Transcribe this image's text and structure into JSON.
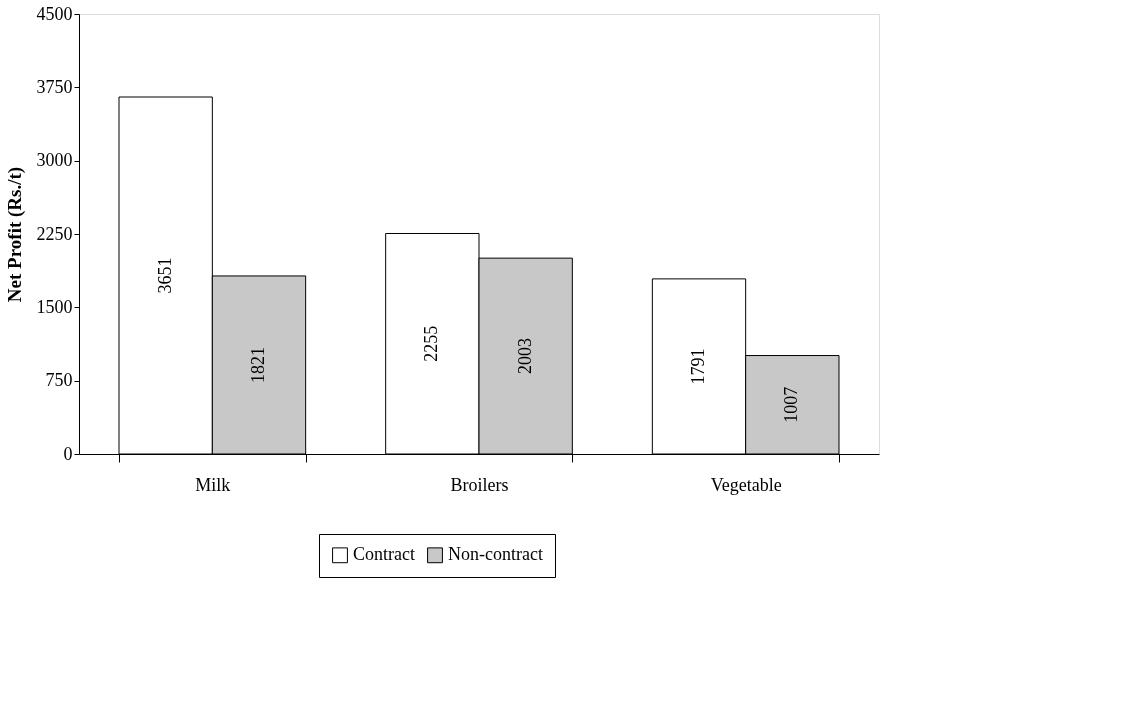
{
  "chart_data": {
    "type": "bar",
    "ylabel": "Net Profit (Rs./t)",
    "categories": [
      "Milk",
      "Broilers",
      "Vegetable"
    ],
    "series": [
      {
        "name": "Contract",
        "color": "#ffffff",
        "values": [
          3651,
          2255,
          1791
        ]
      },
      {
        "name": "Non-contract",
        "color": "#c8c8c8",
        "values": [
          1821,
          2003,
          1007
        ]
      }
    ],
    "ylim": [
      0,
      4500
    ],
    "yticks": [
      0,
      750,
      1500,
      2250,
      3000,
      3750,
      4500
    ],
    "grid": false,
    "legend": "bottom",
    "data_labels": true
  }
}
